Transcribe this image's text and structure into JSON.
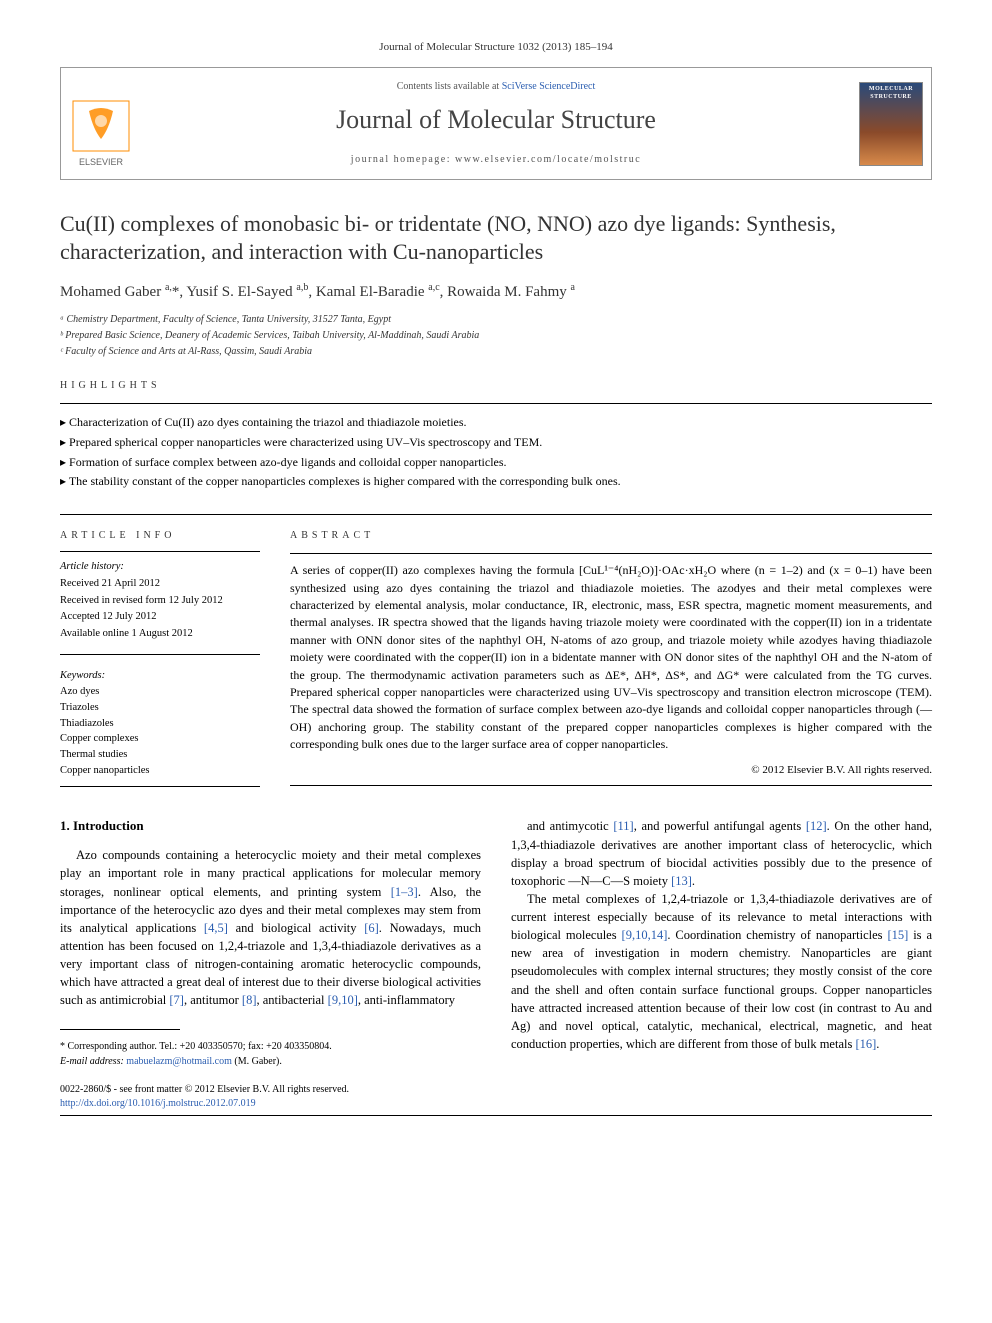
{
  "citation": "Journal of Molecular Structure 1032 (2013) 185–194",
  "header": {
    "contents_prefix": "Contents lists available at ",
    "contents_link": "SciVerse ScienceDirect",
    "journal_name": "Journal of Molecular Structure",
    "homepage_prefix": "journal homepage: ",
    "homepage_url": "www.elsevier.com/locate/molstruc",
    "cover_text": "MOLECULAR STRUCTURE"
  },
  "title": "Cu(II) complexes of monobasic bi- or tridentate (NO, NNO) azo dye ligands: Synthesis, characterization, and interaction with Cu-nanoparticles",
  "authors_html": "Mohamed Gaber <sup>a,</sup>*, Yusif S. El-Sayed <sup>a,b</sup>, Kamal El-Baradie <sup>a,c</sup>, Rowaida M. Fahmy <sup>a</sup>",
  "affiliations": [
    "ᵃ Chemistry Department, Faculty of Science, Tanta University, 31527 Tanta, Egypt",
    "ᵇ Prepared Basic Science, Deanery of Academic Services, Taibah University, Al-Maddinah, Saudi Arabia",
    "ᶜ Faculty of Science and Arts at Al-Rass, Qassim, Saudi Arabia"
  ],
  "highlights_label": "HIGHLIGHTS",
  "highlights": [
    "Characterization of Cu(II) azo dyes containing the triazol and thiadiazole moieties.",
    "Prepared spherical copper nanoparticles were characterized using UV–Vis spectroscopy and TEM.",
    "Formation of surface complex between azo-dye ligands and colloidal copper nanoparticles.",
    "The stability constant of the copper nanoparticles complexes is higher compared with the corresponding bulk ones."
  ],
  "article_info_label": "ARTICLE INFO",
  "history_label": "Article history:",
  "history": [
    "Received 21 April 2012",
    "Received in revised form 12 July 2012",
    "Accepted 12 July 2012",
    "Available online 1 August 2012"
  ],
  "keywords_label": "Keywords:",
  "keywords": [
    "Azo dyes",
    "Triazoles",
    "Thiadiazoles",
    "Copper complexes",
    "Thermal studies",
    "Copper nanoparticles"
  ],
  "abstract_label": "ABSTRACT",
  "abstract_text": "A series of copper(II) azo complexes having the formula [CuL¹⁻⁴(nH₂O)]·OAc·xH₂O where (n = 1–2) and (x = 0–1) have been synthesized using azo dyes containing the triazol and thiadiazole moieties. The azodyes and their metal complexes were characterized by elemental analysis, molar conductance, IR, electronic, mass, ESR spectra, magnetic moment measurements, and thermal analyses. IR spectra showed that the ligands having triazole moiety were coordinated with the copper(II) ion in a tridentate manner with ONN donor sites of the naphthyl OH, N-atoms of azo group, and triazole moiety while azodyes having thiadiazole moiety were coordinated with the copper(II) ion in a bidentate manner with ON donor sites of the naphthyl OH and the N-atom of the group. The thermodynamic activation parameters such as ΔE*, ΔH*, ΔS*, and ΔG* were calculated from the TG curves. Prepared spherical copper nanoparticles were characterized using UV–Vis spectroscopy and transition electron microscope (TEM). The spectral data showed the formation of surface complex between azo-dye ligands and colloidal copper nanoparticles through (—OH) anchoring group. The stability constant of the prepared copper nanoparticles complexes is higher compared with the corresponding bulk ones due to the larger surface area of copper nanoparticles.",
  "abstract_copyright": "© 2012 Elsevier B.V. All rights reserved.",
  "intro_heading": "1. Introduction",
  "intro_col1": "Azo compounds containing a heterocyclic moiety and their metal complexes play an important role in many practical applications for molecular memory storages, nonlinear optical elements, and printing system [1–3]. Also, the importance of the heterocyclic azo dyes and their metal complexes may stem from its analytical applications [4,5] and biological activity [6]. Nowadays, much attention has been focused on 1,2,4-triazole and 1,3,4-thiadiazole derivatives as a very important class of nitrogen-containing aromatic heterocyclic compounds, which have attracted a great deal of interest due to their diverse biological activities such as antimicrobial [7], antitumor [8], antibacterial [9,10], anti-inflammatory",
  "intro_col2": "and antimycotic [11], and powerful antifungal agents [12]. On the other hand, 1,3,4-thiadiazole derivatives are another important class of heterocyclic, which display a broad spectrum of biocidal activities possibly due to the presence of toxophoric —N—C—S moiety [13].\n\nThe metal complexes of 1,2,4-triazole or 1,3,4-thiadiazole derivatives are of current interest especially because of its relevance to metal interactions with biological molecules [9,10,14]. Coordination chemistry of nanoparticles [15] is a new area of investigation in modern chemistry. Nanoparticles are giant pseudomolecules with complex internal structures; they mostly consist of the core and the shell and often contain surface functional groups. Copper nanoparticles have attracted increased attention because of their low cost (in contrast to Au and Ag) and novel optical, catalytic, mechanical, electrical, magnetic, and heat conduction properties, which are different from those of bulk metals [16].",
  "corresponding": {
    "line": "* Corresponding author. Tel.: +20 403350570; fax: +20 403350804.",
    "email_label": "E-mail address:",
    "email": "mabuelazm@hotmail.com",
    "email_suffix": " (M. Gaber)."
  },
  "bottom": {
    "line1": "0022-2860/$ - see front matter © 2012 Elsevier B.V. All rights reserved.",
    "doi": "http://dx.doi.org/10.1016/j.molstruc.2012.07.019"
  },
  "colors": {
    "link": "#2a5db0",
    "text": "#000000",
    "border": "#999999",
    "elsevier_orange": "#ff6b00",
    "elsevier_text": "#666666"
  }
}
